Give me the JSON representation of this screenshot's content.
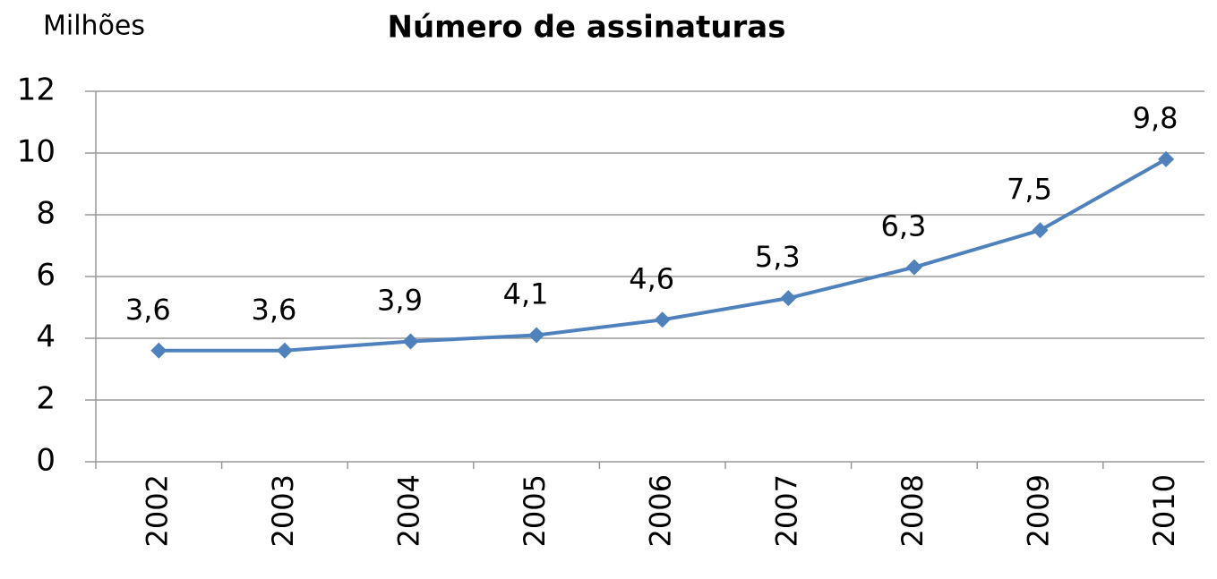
{
  "chart_data": {
    "type": "line",
    "title": "Número de assinaturas",
    "y_label": "Milhões",
    "categories": [
      "2002",
      "2003",
      "2004",
      "2005",
      "2006",
      "2007",
      "2008",
      "2009",
      "2010"
    ],
    "values": [
      3.6,
      3.6,
      3.9,
      4.1,
      4.6,
      5.3,
      6.3,
      7.5,
      9.8
    ],
    "value_labels": [
      "3,6",
      "3,6",
      "3,9",
      "4,1",
      "4,6",
      "5,3",
      "6,3",
      "7,5",
      "9,8"
    ],
    "color": "#4f81bd",
    "ylim": [
      0,
      12
    ],
    "yticks": [
      0,
      2,
      4,
      6,
      8,
      10,
      12
    ],
    "grid": true
  }
}
